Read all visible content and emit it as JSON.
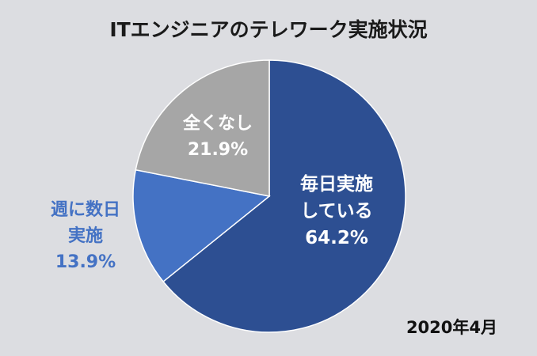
{
  "chart_data": {
    "type": "pie",
    "title": "ITエンジニアのテレワーク実施状況",
    "annotation": "2020年4月",
    "slices": [
      {
        "label_lines": [
          "毎日実施",
          "している"
        ],
        "value": 64.2,
        "value_label": "64.2%",
        "color": "#2d4f92",
        "label_color": "#ffffff"
      },
      {
        "label_lines": [
          "週に数日",
          "実施"
        ],
        "value": 13.9,
        "value_label": "13.9%",
        "color": "#4472c4",
        "label_color": "#4472c4"
      },
      {
        "label_lines": [
          "全くなし"
        ],
        "value": 21.9,
        "value_label": "21.9%",
        "color": "#a6a6a6",
        "label_color": "#ffffff"
      }
    ]
  }
}
